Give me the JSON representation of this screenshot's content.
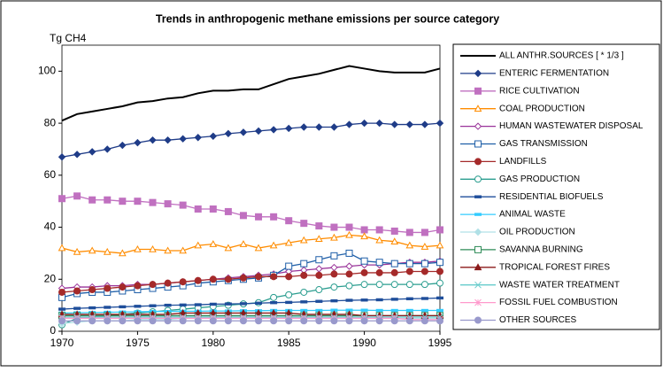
{
  "chart_data": {
    "type": "line",
    "title": "Trends in anthropogenic methane emissions per source category",
    "y_label": "Tg CH4",
    "x": [
      1970,
      1971,
      1972,
      1973,
      1974,
      1975,
      1976,
      1977,
      1978,
      1979,
      1980,
      1981,
      1982,
      1983,
      1984,
      1985,
      1986,
      1987,
      1988,
      1989,
      1990,
      1991,
      1992,
      1993,
      1994,
      1995
    ],
    "xlim": [
      1970,
      1995
    ],
    "xticks": [
      1970,
      1975,
      1980,
      1985,
      1990,
      1995
    ],
    "ylim": [
      0,
      110
    ],
    "yticks": [
      0,
      20,
      40,
      60,
      80,
      100
    ],
    "legend": "right",
    "series": [
      {
        "name": "ALL ANTHR.SOURCES [ * 1/3 ]",
        "color": "#000000",
        "marker": "none",
        "values": [
          81,
          83.5,
          84.5,
          85.5,
          86.5,
          88,
          88.5,
          89.5,
          90,
          91.5,
          92.5,
          92.5,
          93,
          93,
          95,
          97,
          98,
          99,
          100.5,
          102,
          101,
          100,
          99.5,
          99.5,
          99.5,
          101
        ]
      },
      {
        "name": "ENTERIC FERMENTATION",
        "color": "#1f3c88",
        "marker": "diamond",
        "values": [
          67,
          68,
          69,
          70,
          71.5,
          72.5,
          73.5,
          73.5,
          74,
          74.5,
          75,
          76,
          76.5,
          77,
          77.5,
          78,
          78.5,
          78.5,
          78.5,
          79.5,
          80,
          80,
          79.5,
          79.5,
          79.5,
          80
        ]
      },
      {
        "name": "RICE CULTIVATION",
        "color": "#c070c0",
        "marker": "square",
        "values": [
          51,
          52,
          50.5,
          50.5,
          50,
          50,
          49.5,
          49,
          48.5,
          47,
          47,
          46,
          44.5,
          44,
          44,
          42.5,
          41.5,
          40.5,
          40,
          40,
          39,
          39,
          38.5,
          38,
          38,
          39
        ]
      },
      {
        "name": "COAL PRODUCTION",
        "color": "#ff8c00",
        "marker": "triangle-open",
        "values": [
          32,
          30.5,
          31,
          30.5,
          30,
          31.5,
          31.5,
          31,
          31,
          33,
          33.5,
          32,
          33.5,
          32,
          33,
          34,
          35,
          35.5,
          36,
          37,
          36.5,
          35,
          34.5,
          33,
          32.5,
          33
        ]
      },
      {
        "name": "HUMAN WASTEWATER DISPOSAL",
        "color": "#993399",
        "marker": "diamond-open",
        "values": [
          16.5,
          17,
          17,
          17.5,
          17.5,
          18,
          18,
          18.5,
          19,
          19.5,
          20,
          20.5,
          21,
          21.5,
          22,
          23,
          23.5,
          24,
          24.5,
          25,
          25.5,
          25.5,
          26,
          26.5,
          26.5,
          27
        ]
      },
      {
        "name": "GAS TRANSMISSION",
        "color": "#1f5fa8",
        "marker": "square-open",
        "values": [
          13,
          14.5,
          15,
          15,
          15.5,
          16,
          16.5,
          17,
          17.5,
          18.5,
          19,
          19.5,
          20,
          20.5,
          21.5,
          25,
          26,
          27.5,
          29,
          30,
          27,
          26.5,
          26,
          26,
          26,
          26.5
        ]
      },
      {
        "name": "LANDFILLS",
        "color": "#a52a2a",
        "marker": "circle",
        "values": [
          15,
          15.5,
          16,
          16.5,
          17,
          17.5,
          18,
          18.5,
          19,
          19.5,
          20,
          20,
          20.5,
          21,
          21,
          21,
          21.5,
          21.5,
          22,
          22,
          22.5,
          22.5,
          22.5,
          23,
          23,
          23
        ]
      },
      {
        "name": "GAS PRODUCTION",
        "color": "#2a9d8f",
        "marker": "circle-open",
        "values": [
          2.5,
          5,
          5.5,
          6,
          6.5,
          7,
          7.5,
          8,
          8.5,
          9,
          9.5,
          10,
          10.5,
          11,
          13,
          14,
          15,
          16,
          17,
          17.5,
          18,
          18,
          18,
          18,
          18,
          18.5
        ]
      },
      {
        "name": "RESIDENTIAL BIOFUELS",
        "color": "#1f4e9b",
        "marker": "dash",
        "values": [
          8.5,
          8.8,
          9,
          9.2,
          9.4,
          9.6,
          9.8,
          10,
          10.1,
          10.2,
          10.4,
          10.5,
          10.6,
          10.8,
          11,
          11.1,
          11.3,
          11.5,
          11.7,
          11.9,
          12,
          12.1,
          12.3,
          12.5,
          12.6,
          12.8
        ]
      },
      {
        "name": "ANIMAL WASTE",
        "color": "#33ccff",
        "marker": "dash",
        "values": [
          7,
          7.1,
          7.2,
          7.3,
          7.4,
          7.5,
          7.6,
          7.6,
          7.7,
          7.7,
          7.8,
          7.8,
          7.9,
          7.9,
          8,
          8,
          8,
          8,
          8.1,
          8.1,
          8.1,
          8,
          8,
          8,
          8,
          8
        ]
      },
      {
        "name": "OIL PRODUCTION",
        "color": "#b0e0e6",
        "marker": "diamond",
        "values": [
          3,
          3.5,
          4,
          4,
          4,
          4.5,
          4.5,
          4.5,
          5,
          5,
          5,
          5,
          5,
          5,
          5,
          5,
          5,
          5,
          5,
          5,
          5,
          5,
          5,
          5,
          5,
          5
        ]
      },
      {
        "name": "SAVANNA BURNING",
        "color": "#2e8b57",
        "marker": "square-open",
        "values": [
          6,
          6,
          6,
          6,
          6,
          6,
          6,
          6,
          6,
          6,
          6,
          6,
          6,
          6,
          6,
          6,
          6,
          6,
          6,
          6,
          6,
          6,
          6,
          6,
          6,
          6
        ]
      },
      {
        "name": "TROPICAL FOREST FIRES",
        "color": "#8b1a1a",
        "marker": "triangle",
        "values": [
          6.5,
          6.5,
          6.5,
          6.5,
          6.5,
          6.5,
          6.5,
          6.5,
          7,
          7,
          7,
          7,
          7,
          7,
          7,
          7,
          6.5,
          6.5,
          6.5,
          6.5,
          6,
          6,
          6,
          6,
          6,
          6
        ]
      },
      {
        "name": "WASTE WATER TREATMENT",
        "color": "#66cccc",
        "marker": "x",
        "values": [
          5.5,
          5.5,
          5.5,
          5.5,
          5.5,
          5.5,
          5.5,
          5.5,
          5.5,
          5.5,
          5.5,
          5.5,
          5.5,
          5.5,
          5.5,
          5.5,
          5.5,
          5.5,
          5.5,
          5.5,
          5.5,
          5.5,
          5.5,
          5.5,
          5.5,
          5.5
        ]
      },
      {
        "name": "FOSSIL FUEL COMBUSTION",
        "color": "#ff99cc",
        "marker": "star",
        "values": [
          5,
          5,
          5,
          5,
          5,
          5,
          5,
          5,
          5,
          5,
          5,
          5,
          5,
          5,
          5,
          5,
          5,
          5,
          5,
          5,
          5,
          5,
          5,
          4.5,
          4.5,
          4.5
        ]
      },
      {
        "name": "OTHER SOURCES",
        "color": "#9999cc",
        "marker": "circle",
        "values": [
          4,
          4,
          4,
          4,
          4,
          4,
          4,
          4,
          4,
          4,
          4,
          4,
          4,
          4,
          4,
          4,
          4,
          4,
          4,
          4,
          4,
          4,
          4,
          4,
          4,
          4
        ]
      }
    ]
  }
}
